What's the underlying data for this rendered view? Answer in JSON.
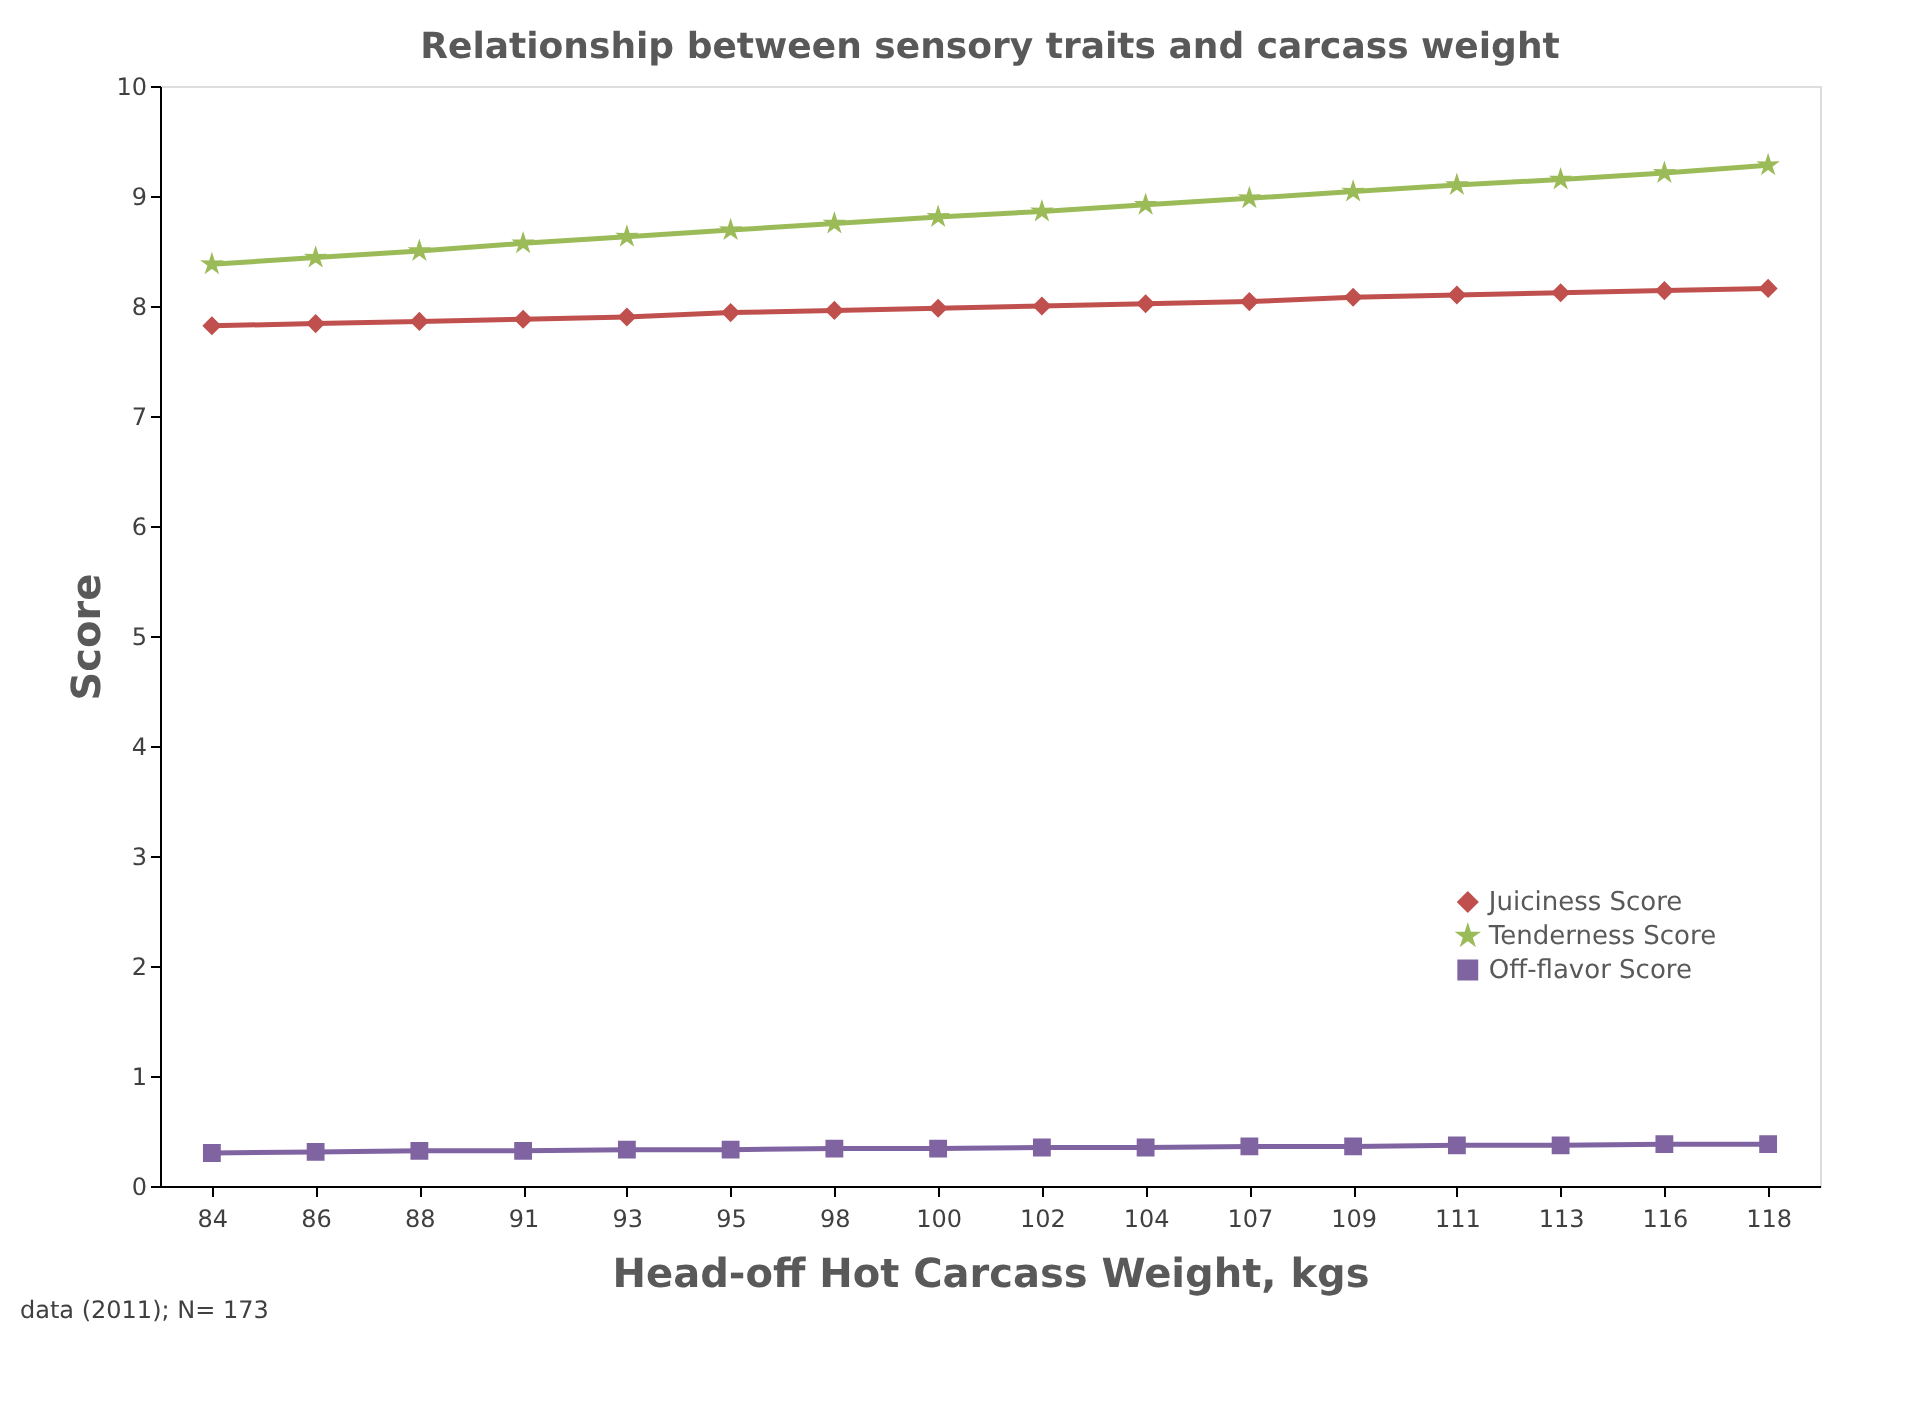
{
  "chart_data": {
    "type": "line",
    "title": "Relationship between sensory traits and carcass weight",
    "xlabel": "Head-off Hot Carcass Weight, kgs",
    "ylabel": "Score",
    "categories": [
      "84",
      "86",
      "88",
      "91",
      "93",
      "95",
      "98",
      "100",
      "102",
      "104",
      "107",
      "109",
      "111",
      "113",
      "116",
      "118"
    ],
    "series": [
      {
        "name": "Juiciness Score",
        "color": "#c0504d",
        "marker": "diamond",
        "values": [
          7.82,
          7.84,
          7.86,
          7.88,
          7.9,
          7.94,
          7.96,
          7.98,
          8.0,
          8.02,
          8.04,
          8.08,
          8.1,
          8.12,
          8.14,
          8.16
        ]
      },
      {
        "name": "Tenderness Score",
        "color": "#9bbb59",
        "marker": "star",
        "values": [
          8.38,
          8.44,
          8.5,
          8.57,
          8.63,
          8.69,
          8.75,
          8.81,
          8.86,
          8.92,
          8.98,
          9.04,
          9.1,
          9.15,
          9.21,
          9.28
        ]
      },
      {
        "name": "Off-flavor Score",
        "color": "#8064a2",
        "marker": "square",
        "values": [
          0.3,
          0.31,
          0.32,
          0.32,
          0.33,
          0.33,
          0.34,
          0.34,
          0.35,
          0.35,
          0.36,
          0.36,
          0.37,
          0.37,
          0.38,
          0.38
        ]
      }
    ],
    "ylim": [
      0,
      10
    ],
    "yticks": [
      0,
      1,
      2,
      3,
      4,
      5,
      6,
      7,
      8,
      9,
      10
    ],
    "grid": false,
    "legend": "bottom right",
    "line_style": "solid",
    "annotations": [
      "data (2011); N= 173"
    ]
  }
}
